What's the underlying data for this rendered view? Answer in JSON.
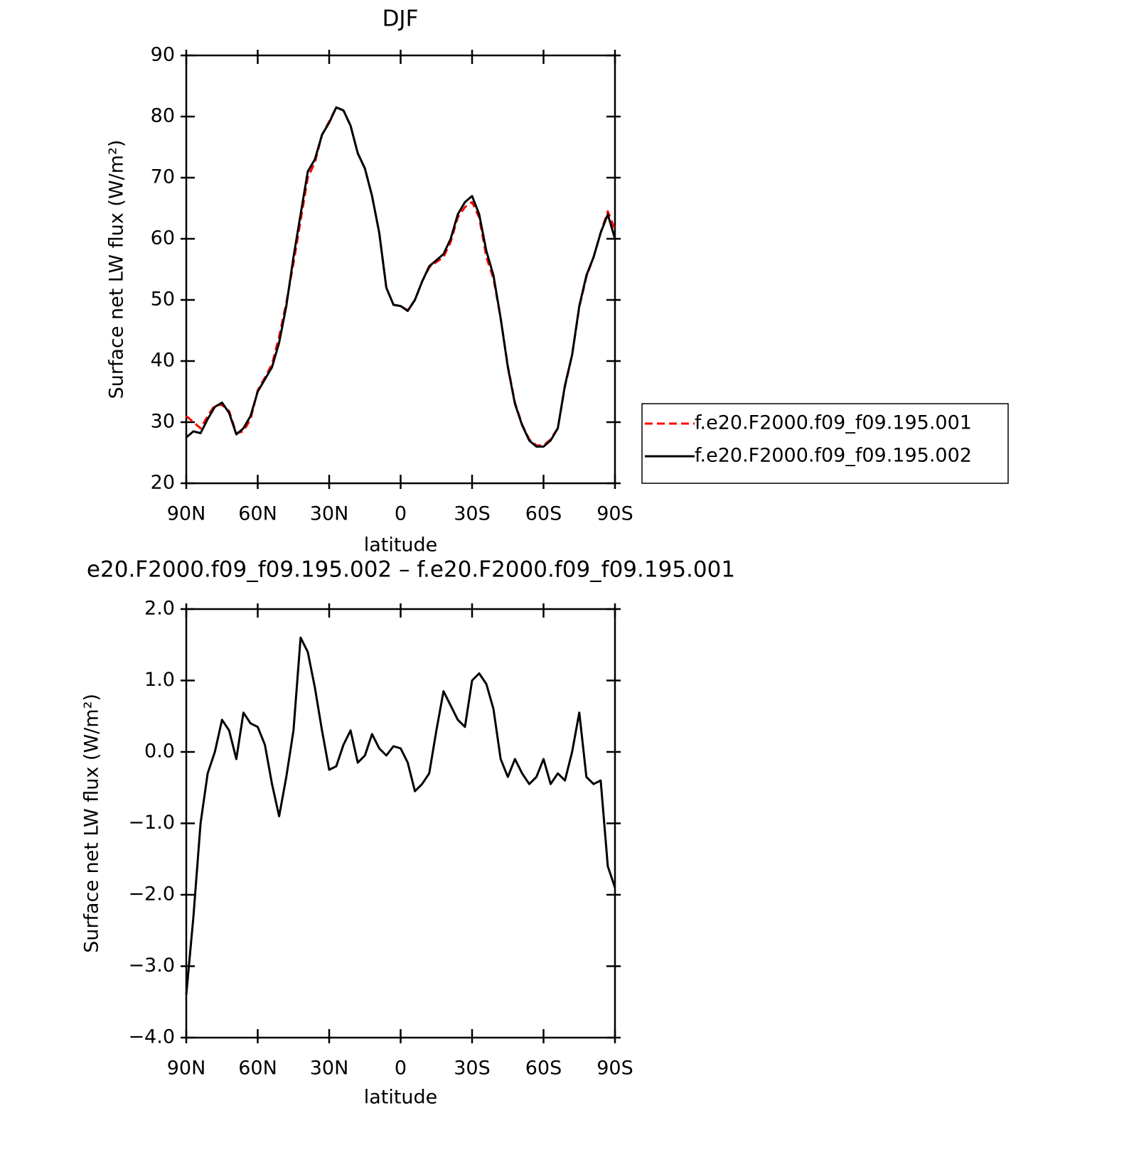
{
  "chart_data": [
    {
      "type": "line",
      "title": "DJF",
      "xlabel": "latitude",
      "ylabel": "Surface net LW flux (W/m²)",
      "x": [
        90,
        87,
        84,
        81,
        78,
        75,
        72,
        69,
        66,
        63,
        60,
        57,
        54,
        51,
        48,
        45,
        42,
        39,
        36,
        33,
        30,
        27,
        24,
        21,
        18,
        15,
        12,
        9,
        6,
        3,
        0,
        -3,
        -6,
        -9,
        -12,
        -15,
        -18,
        -21,
        -24,
        -27,
        -30,
        -33,
        -36,
        -39,
        -42,
        -45,
        -48,
        -51,
        -54,
        -57,
        -60,
        -63,
        -66,
        -69,
        -72,
        -75,
        -78,
        -81,
        -84,
        -87,
        -90
      ],
      "series": [
        {
          "name": "f.e20.F2000.f09_f09.195.001",
          "color": "#ff0000",
          "dash": "dashed",
          "values": [
            31,
            30,
            29,
            31,
            32.8,
            32.8,
            31.8,
            28.2,
            28.5,
            30.5,
            35.2,
            37.3,
            39.5,
            44,
            49.5,
            56,
            63,
            70,
            72.5,
            77,
            79.2,
            81.5,
            81,
            78.5,
            74,
            71.5,
            67,
            61,
            52,
            49.2,
            49,
            48.3,
            50,
            53,
            55.3,
            56.2,
            57,
            59.5,
            63.5,
            65.2,
            66,
            63.5,
            57,
            53.5,
            47,
            39.2,
            33.2,
            29.6,
            27.2,
            26.2,
            26.2,
            27.2,
            29,
            35.8,
            41,
            48.8,
            53.8,
            57,
            61,
            64.5,
            61.5
          ]
        },
        {
          "name": "f.e20.F2000.f09_f09.195.002",
          "color": "#000000",
          "dash": "solid",
          "values": [
            27.5,
            28.5,
            28.2,
            30.5,
            32.5,
            33.2,
            31.5,
            28,
            29,
            31,
            35,
            37,
            39,
            43,
            49,
            57,
            64,
            71,
            73,
            77,
            79,
            81.5,
            81,
            78.5,
            74,
            71.5,
            67,
            61,
            52,
            49.2,
            49,
            48.2,
            50,
            53,
            55.5,
            56.5,
            57.5,
            60,
            64,
            66,
            67,
            64,
            58,
            54,
            47,
            39,
            33,
            29.5,
            27,
            26,
            26,
            27,
            29,
            36,
            41,
            49,
            54,
            57,
            61,
            64,
            60
          ]
        }
      ],
      "xlim": [
        90,
        -90
      ],
      "xticks": [
        {
          "value": 90,
          "label": "90N"
        },
        {
          "value": 60,
          "label": "60N"
        },
        {
          "value": 30,
          "label": "30N"
        },
        0,
        {
          "value": -30,
          "label": "30S"
        },
        {
          "value": -60,
          "label": "60S"
        },
        {
          "value": -90,
          "label": "90S"
        }
      ],
      "ylim": [
        20,
        90
      ],
      "yticks": [
        20,
        30,
        40,
        50,
        60,
        70,
        80,
        90
      ],
      "legend": "right"
    },
    {
      "type": "line",
      "title": "e20.F2000.f09_f09.195.002 – f.e20.F2000.f09_f09.195.001",
      "xlabel": "latitude",
      "ylabel": "Surface net LW flux (W/m²)",
      "x": [
        90,
        87,
        84,
        81,
        78,
        75,
        72,
        69,
        66,
        63,
        60,
        57,
        54,
        51,
        48,
        45,
        42,
        39,
        36,
        33,
        30,
        27,
        24,
        21,
        18,
        15,
        12,
        9,
        6,
        3,
        0,
        -3,
        -6,
        -9,
        -12,
        -15,
        -18,
        -21,
        -24,
        -27,
        -30,
        -33,
        -36,
        -39,
        -42,
        -45,
        -48,
        -51,
        -54,
        -57,
        -60,
        -63,
        -66,
        -69,
        -72,
        -75,
        -78,
        -81,
        -84,
        -87,
        -90
      ],
      "series": [
        {
          "color": "#000000",
          "dash": "solid",
          "values": [
            -3.4,
            -2.3,
            -1.0,
            -0.3,
            0.0,
            0.45,
            0.3,
            -0.1,
            0.55,
            0.4,
            0.35,
            0.1,
            -0.45,
            -0.9,
            -0.35,
            0.3,
            1.6,
            1.4,
            0.9,
            0.3,
            -0.25,
            -0.2,
            0.1,
            0.3,
            -0.15,
            -0.05,
            0.25,
            0.05,
            -0.05,
            0.08,
            0.05,
            -0.15,
            -0.55,
            -0.45,
            -0.3,
            0.3,
            0.85,
            0.65,
            0.45,
            0.35,
            1.0,
            1.1,
            0.95,
            0.6,
            -0.1,
            -0.35,
            -0.1,
            -0.3,
            -0.45,
            -0.35,
            -0.1,
            -0.45,
            -0.3,
            -0.4,
            0.0,
            0.55,
            -0.35,
            -0.45,
            -0.4,
            -1.6,
            -1.9
          ]
        }
      ],
      "xlim": [
        90,
        -90
      ],
      "xticks": [
        {
          "value": 90,
          "label": "90N"
        },
        {
          "value": 60,
          "label": "60N"
        },
        {
          "value": 30,
          "label": "30N"
        },
        0,
        {
          "value": -30,
          "label": "30S"
        },
        {
          "value": -60,
          "label": "60S"
        },
        {
          "value": -90,
          "label": "90S"
        }
      ],
      "ylim": [
        -4,
        2
      ],
      "yticks": [
        {
          "value": -4,
          "label": "−4.0"
        },
        {
          "value": -3,
          "label": "−3.0"
        },
        {
          "value": -2,
          "label": "−2.0"
        },
        {
          "value": -1,
          "label": "−1.0"
        },
        {
          "value": 0,
          "label": "0.0"
        },
        {
          "value": 1,
          "label": "1.0"
        },
        {
          "value": 2,
          "label": "2.0"
        }
      ]
    }
  ]
}
